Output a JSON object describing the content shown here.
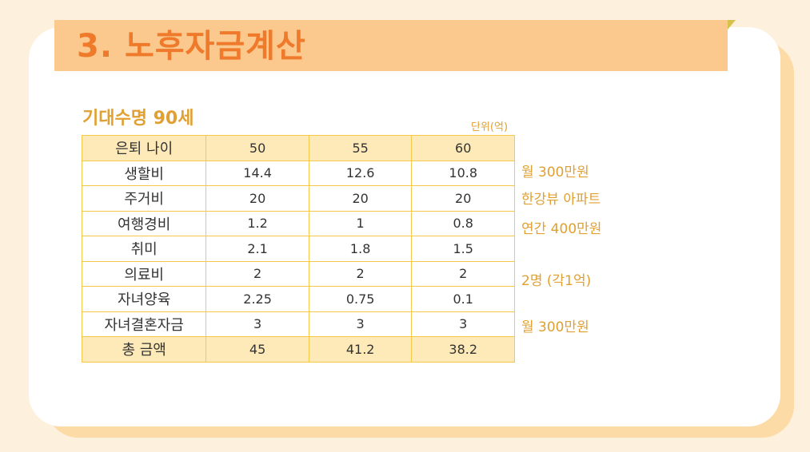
{
  "title": "3.  노후자금계산",
  "subtitle": "기대수명 90세",
  "unit": "단위(억)",
  "table": {
    "header": {
      "label": "은퇴 나이",
      "values": [
        "50",
        "55",
        "60"
      ]
    },
    "rows": [
      {
        "label": "생할비",
        "values": [
          "14.4",
          "12.6",
          "10.8"
        ]
      },
      {
        "label": "주거비",
        "values": [
          "20",
          "20",
          "20"
        ]
      },
      {
        "label": "여행경비",
        "values": [
          "1.2",
          "1",
          "0.8"
        ]
      },
      {
        "label": "취미",
        "values": [
          "2.1",
          "1.8",
          "1.5"
        ]
      },
      {
        "label": "의료비",
        "values": [
          "2",
          "2",
          "2"
        ]
      },
      {
        "label": "자녀양육",
        "values": [
          "2.25",
          "0.75",
          "0.1"
        ]
      },
      {
        "label": "자녀결혼자금",
        "values": [
          "3",
          "3",
          "3"
        ]
      }
    ],
    "total": {
      "label": "총 금액",
      "values": [
        "45",
        "41.2",
        "38.2"
      ]
    }
  },
  "notes": {
    "living": "월 300만원",
    "housing": "한강뷰 아파트",
    "travel": "연간 400만원",
    "medical": "2명 (각1억)",
    "wedding": "월 300만원"
  },
  "colors": {
    "background": "#fdf0dc",
    "title_bar": "#fbc98d",
    "title_text": "#ef7a2b",
    "accent": "#e0a033",
    "table_border": "#f5c84a",
    "highlight_row": "#fdeab8"
  }
}
